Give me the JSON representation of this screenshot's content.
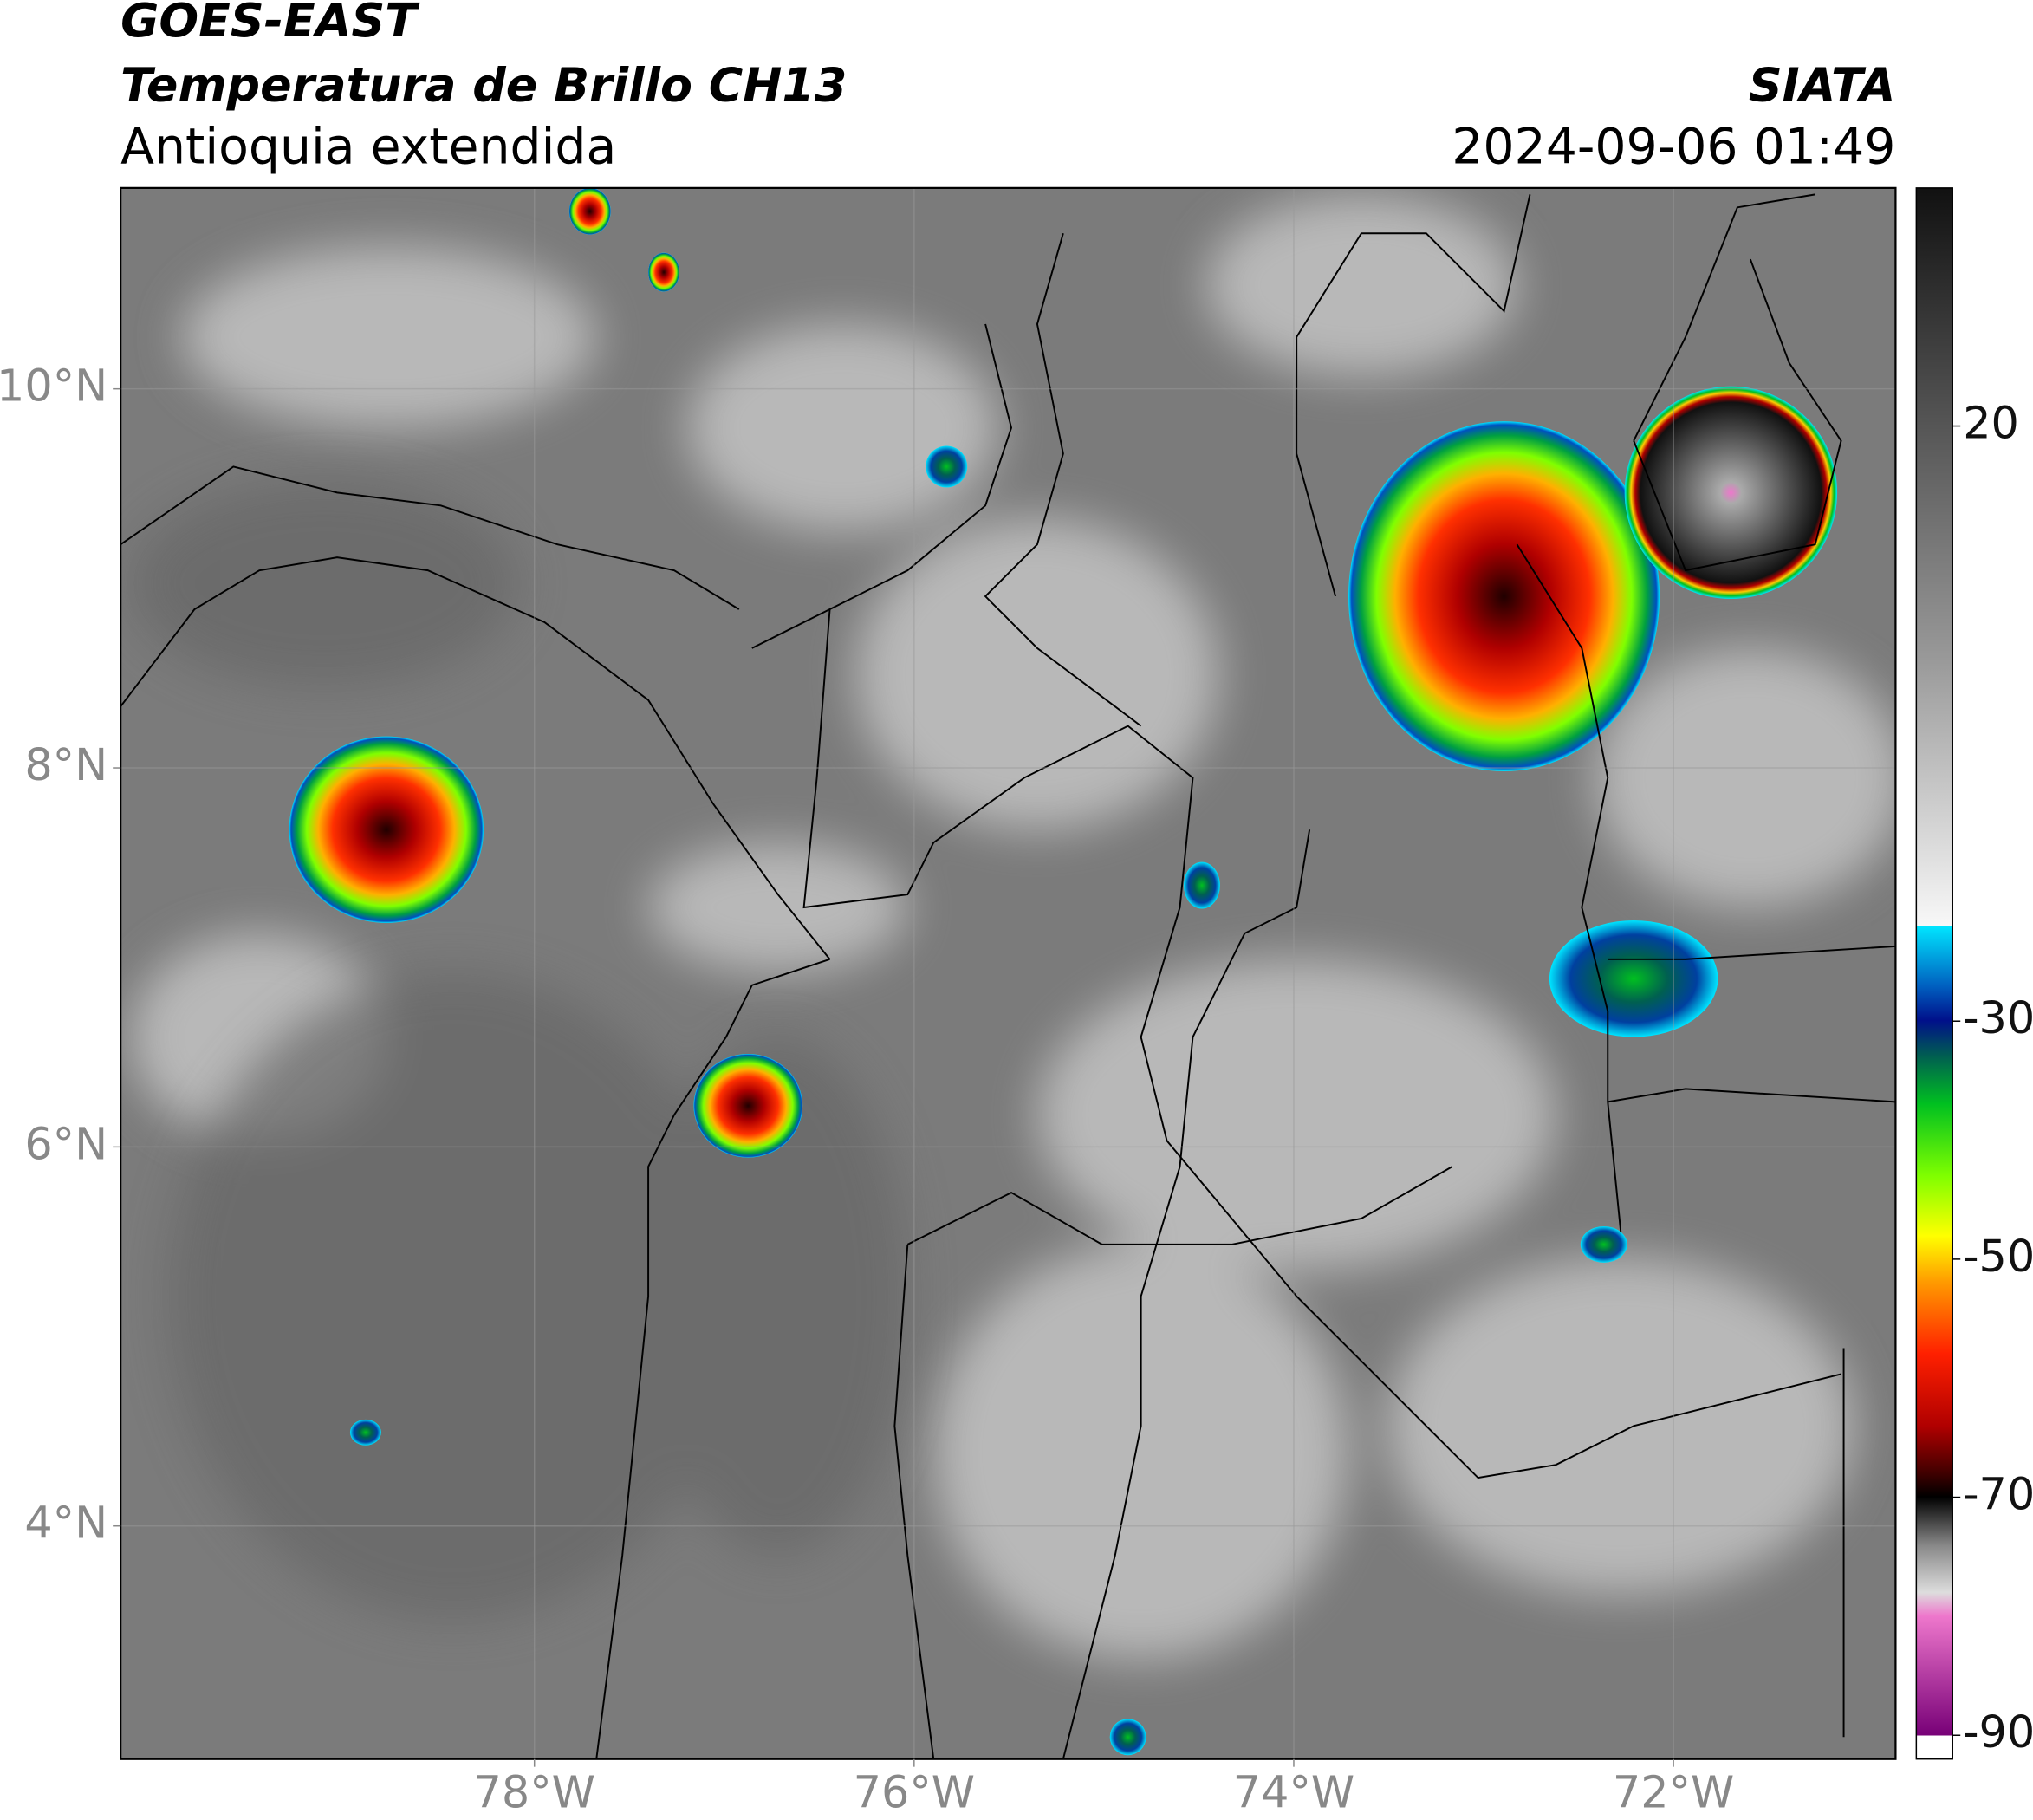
{
  "header": {
    "title": "GOES-EAST",
    "subtitle": "Temperatura de Brillo CH13",
    "region": "Antioquia extendida",
    "source": "SIATA",
    "datetime": "2024-09-06 01:49"
  },
  "map": {
    "lon_lim": [
      -80.18,
      -70.83
    ],
    "lat_lim": [
      2.77,
      11.06
    ],
    "lon_ticks": [
      {
        "value": -78,
        "label": "78°W"
      },
      {
        "value": -76,
        "label": "76°W"
      },
      {
        "value": -74,
        "label": "74°W"
      },
      {
        "value": -72,
        "label": "72°W"
      }
    ],
    "lat_ticks": [
      {
        "value": 4,
        "label": "4°N"
      },
      {
        "value": 6,
        "label": "6°N"
      },
      {
        "value": 8,
        "label": "8°N"
      },
      {
        "value": 10,
        "label": "10°N"
      }
    ],
    "grid": true
  },
  "colorbar": {
    "lim": [
      -92,
      40
    ],
    "ticks": [
      20,
      -30,
      -50,
      -70,
      -90
    ]
  }
}
